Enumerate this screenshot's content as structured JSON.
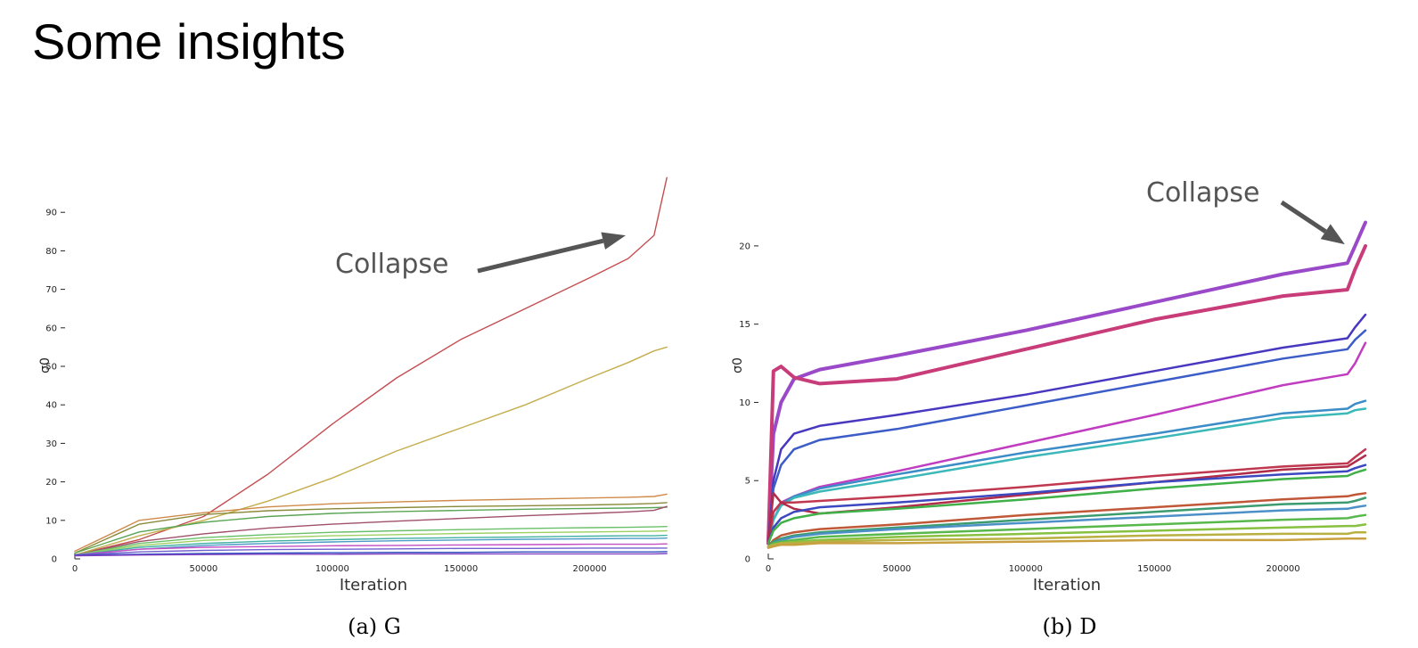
{
  "slide": {
    "title": "Some insights"
  },
  "chart_data": [
    {
      "type": "line",
      "caption": "(a) G",
      "xlabel": "Iteration",
      "ylabel": "σ0",
      "xlim": [
        0,
        232000
      ],
      "ylim": [
        0,
        100
      ],
      "xticks": [
        0,
        50000,
        100000,
        150000,
        200000
      ],
      "yticks": [
        0,
        10,
        20,
        30,
        40,
        50,
        60,
        70,
        80,
        90
      ],
      "annotation": {
        "text": "Collapse",
        "target": [
          214000,
          84
        ]
      },
      "x": [
        0,
        25000,
        50000,
        75000,
        100000,
        125000,
        150000,
        175000,
        200000,
        215000,
        225000,
        230000
      ],
      "series": [
        {
          "color": "#c44e52",
          "values": [
            1,
            5,
            11,
            22,
            35,
            47,
            57,
            65,
            73,
            78,
            84,
            99
          ]
        },
        {
          "color": "#c4ad4c",
          "values": [
            1,
            6,
            10,
            15,
            21,
            28,
            34,
            40,
            47,
            51,
            54,
            55
          ]
        },
        {
          "color": "#d08a4a",
          "values": [
            2,
            10,
            12,
            13.5,
            14.3,
            14.8,
            15.2,
            15.5,
            15.8,
            16,
            16.2,
            16.8
          ]
        },
        {
          "color": "#8a8a3a",
          "values": [
            1.5,
            9,
            11.5,
            12.5,
            13,
            13.3,
            13.6,
            13.8,
            14,
            14.2,
            14.4,
            14.6
          ]
        },
        {
          "color": "#5aa555",
          "values": [
            1.5,
            7,
            9.5,
            11,
            11.8,
            12.3,
            12.6,
            12.9,
            13.1,
            13.2,
            13.3,
            13.4
          ]
        },
        {
          "color": "#a0506a",
          "values": [
            1,
            4.5,
            6.5,
            8,
            9,
            9.8,
            10.5,
            11.2,
            11.8,
            12.2,
            12.6,
            13.6
          ]
        },
        {
          "color": "#6ac06a",
          "values": [
            1,
            4,
            5.5,
            6.3,
            6.9,
            7.3,
            7.6,
            7.9,
            8.1,
            8.2,
            8.3,
            8.4
          ]
        },
        {
          "color": "#9cd060",
          "values": [
            1,
            3.5,
            4.8,
            5.5,
            6,
            6.3,
            6.6,
            6.8,
            7,
            7.1,
            7.2,
            7.3
          ]
        },
        {
          "color": "#40b0a0",
          "values": [
            1,
            3,
            4,
            4.6,
            5,
            5.3,
            5.5,
            5.7,
            5.9,
            6,
            6,
            6.1
          ]
        },
        {
          "color": "#4c9ac8",
          "values": [
            1,
            2.5,
            3.5,
            4,
            4.4,
            4.7,
            4.9,
            5.1,
            5.2,
            5.3,
            5.3,
            5.4
          ]
        },
        {
          "color": "#c44ec4",
          "values": [
            1,
            2.5,
            3,
            3.2,
            3.4,
            3.5,
            3.6,
            3.7,
            3.8,
            3.8,
            3.8,
            3.9
          ]
        },
        {
          "color": "#7060d0",
          "values": [
            1,
            1.8,
            2.2,
            2.4,
            2.5,
            2.6,
            2.7,
            2.7,
            2.8,
            2.8,
            2.8,
            2.8
          ]
        },
        {
          "color": "#3050c0",
          "values": [
            1,
            1.2,
            1.4,
            1.5,
            1.6,
            1.7,
            1.7,
            1.8,
            1.8,
            1.8,
            1.8,
            1.9
          ]
        },
        {
          "color": "#8040c0",
          "values": [
            0.8,
            1,
            1.1,
            1.2,
            1.2,
            1.3,
            1.3,
            1.3,
            1.3,
            1.3,
            1.3,
            1.4
          ]
        }
      ]
    },
    {
      "type": "line",
      "caption": "(b) D",
      "xlabel": "Iteration",
      "ylabel": "σ0",
      "xlim": [
        0,
        232000
      ],
      "ylim": [
        0,
        22.5
      ],
      "xticks": [
        0,
        50000,
        100000,
        150000,
        200000
      ],
      "yticks": [
        0,
        5,
        10,
        15,
        20
      ],
      "annotation": {
        "text": "Collapse",
        "target": [
          224000,
          20.1
        ]
      },
      "x": [
        0,
        2000,
        5000,
        10000,
        20000,
        50000,
        100000,
        150000,
        200000,
        225000,
        228000,
        232000
      ],
      "series": [
        {
          "color": "#9a4ac8",
          "values": [
            1,
            8,
            10,
            11.5,
            12.1,
            13,
            14.6,
            16.4,
            18.2,
            18.9,
            20,
            21.5
          ]
        },
        {
          "color": "#c83c7a",
          "values": [
            1,
            12,
            12.3,
            11.6,
            11.2,
            11.5,
            13.4,
            15.3,
            16.8,
            17.2,
            18.5,
            20
          ]
        },
        {
          "color": "#4838c0",
          "values": [
            1,
            5,
            7,
            8,
            8.5,
            9.2,
            10.5,
            12,
            13.5,
            14.1,
            14.8,
            15.6
          ]
        },
        {
          "color": "#3c5cc8",
          "values": [
            1,
            4.5,
            6,
            7,
            7.6,
            8.3,
            9.8,
            11.3,
            12.8,
            13.4,
            14,
            14.6
          ]
        },
        {
          "color": "#c03cc0",
          "values": [
            1,
            3,
            3.6,
            4,
            4.6,
            5.6,
            7.4,
            9.2,
            11.1,
            11.8,
            12.5,
            13.8
          ]
        },
        {
          "color": "#3c8cc8",
          "values": [
            1,
            2.5,
            3.5,
            4,
            4.5,
            5.4,
            6.8,
            8,
            9.3,
            9.6,
            9.9,
            10.1
          ]
        },
        {
          "color": "#3cb8b8",
          "values": [
            1,
            2.5,
            3.4,
            3.9,
            4.3,
            5.1,
            6.5,
            7.7,
            9,
            9.3,
            9.5,
            9.6
          ]
        },
        {
          "color": "#c03850",
          "values": [
            1,
            3,
            3.6,
            3.6,
            3.7,
            4,
            4.6,
            5.3,
            5.9,
            6.1,
            6.5,
            7
          ]
        },
        {
          "color": "#b02c48",
          "values": [
            1,
            4.2,
            3.6,
            3.2,
            2.9,
            3.3,
            4.1,
            4.9,
            5.7,
            5.9,
            6.2,
            6.6
          ]
        },
        {
          "color": "#3c48c0",
          "values": [
            1,
            2,
            2.6,
            3,
            3.3,
            3.6,
            4.2,
            4.9,
            5.4,
            5.6,
            5.8,
            6
          ]
        },
        {
          "color": "#40b048",
          "values": [
            1,
            1.8,
            2.3,
            2.6,
            2.9,
            3.2,
            3.8,
            4.5,
            5.1,
            5.3,
            5.5,
            5.7
          ]
        },
        {
          "color": "#c05838",
          "values": [
            0.8,
            1.2,
            1.5,
            1.7,
            1.9,
            2.2,
            2.8,
            3.3,
            3.8,
            4,
            4.1,
            4.2
          ]
        },
        {
          "color": "#3c9c70",
          "values": [
            0.8,
            1.1,
            1.3,
            1.5,
            1.7,
            2,
            2.5,
            3,
            3.5,
            3.6,
            3.7,
            3.9
          ]
        },
        {
          "color": "#4c90c8",
          "values": [
            0.8,
            1,
            1.2,
            1.4,
            1.6,
            1.9,
            2.3,
            2.7,
            3.1,
            3.2,
            3.3,
            3.4
          ]
        },
        {
          "color": "#58b84c",
          "values": [
            0.8,
            1,
            1.1,
            1.2,
            1.4,
            1.6,
            1.9,
            2.2,
            2.5,
            2.6,
            2.7,
            2.8
          ]
        },
        {
          "color": "#88c040",
          "values": [
            0.8,
            0.9,
            1,
            1.1,
            1.2,
            1.4,
            1.6,
            1.8,
            2,
            2.1,
            2.1,
            2.2
          ]
        },
        {
          "color": "#b8b040",
          "values": [
            0.8,
            0.9,
            1,
            1,
            1.1,
            1.2,
            1.3,
            1.5,
            1.6,
            1.6,
            1.7,
            1.7
          ]
        },
        {
          "color": "#c8a040",
          "values": [
            0.7,
            0.8,
            0.9,
            0.9,
            1,
            1,
            1.1,
            1.2,
            1.2,
            1.3,
            1.3,
            1.3
          ]
        }
      ]
    }
  ]
}
